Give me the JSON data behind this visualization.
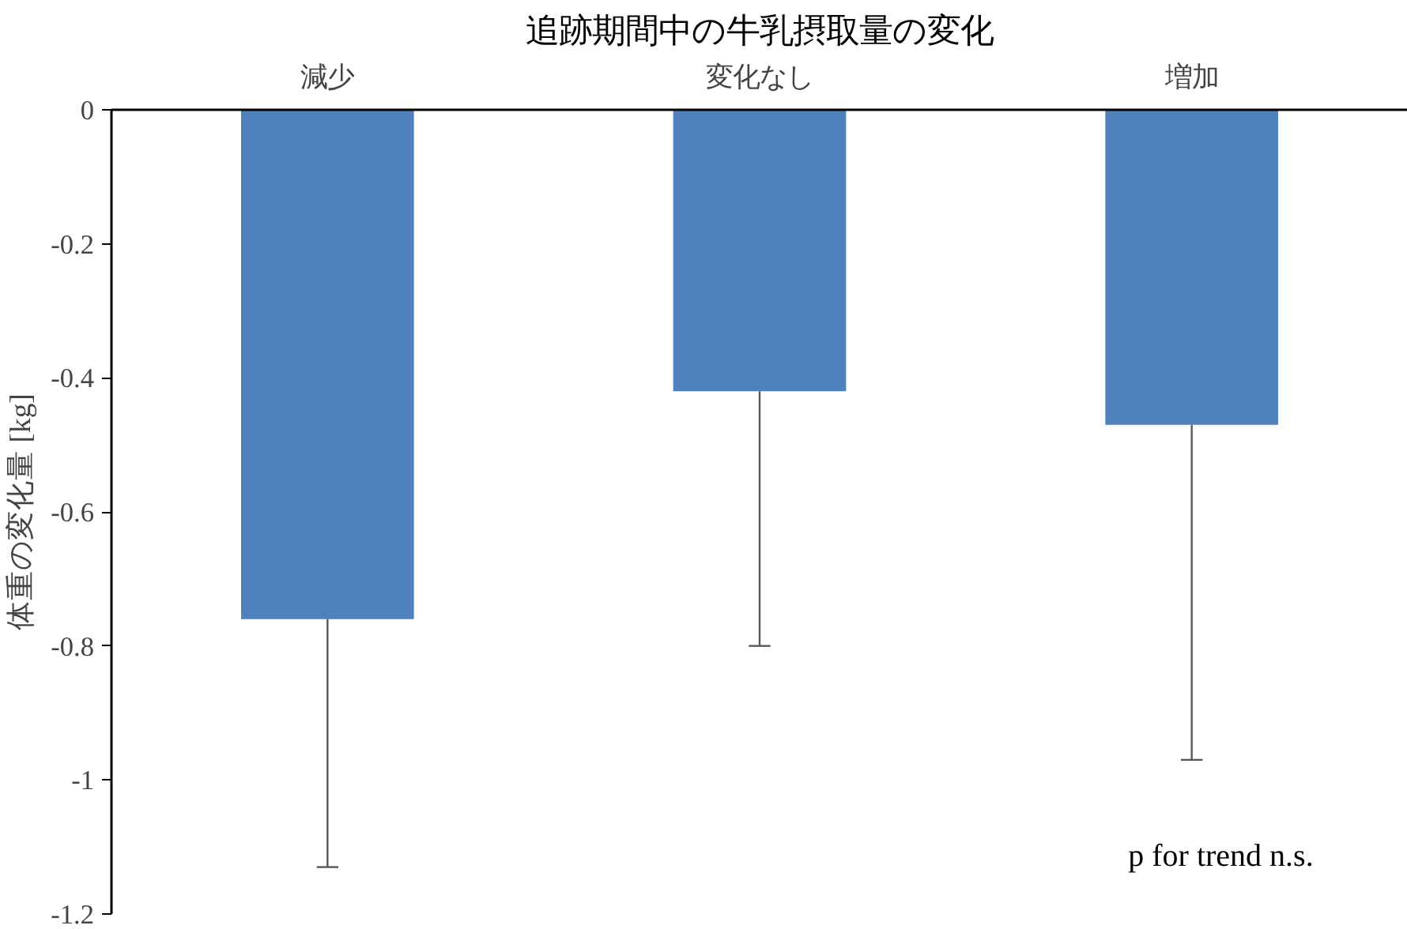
{
  "chart_data": {
    "type": "bar",
    "title": "追跡期間中の牛乳摂取量の変化",
    "ylabel": "体重の変化量 [kg]",
    "categories": [
      "減少",
      "変化なし",
      "増加"
    ],
    "values": [
      -0.76,
      -0.42,
      -0.47
    ],
    "errors": [
      [
        -1.13,
        -0.76
      ],
      [
        -0.8,
        -0.42
      ],
      [
        -0.97,
        -0.47
      ]
    ],
    "color": "#4f81bd",
    "ylim": [
      -1.2,
      0
    ],
    "yticks": [
      0,
      -0.2,
      -0.4,
      -0.6,
      -0.8,
      -1,
      -1.2
    ],
    "grid": false,
    "annotations": [
      "p for trend  n.s."
    ]
  }
}
